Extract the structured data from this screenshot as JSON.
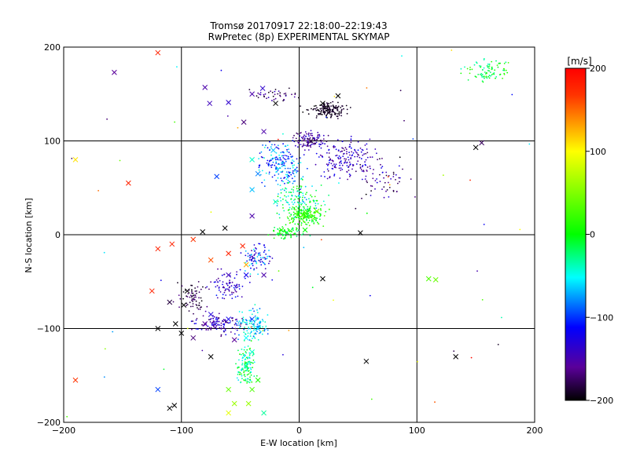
{
  "chart_data": {
    "type": "scatter",
    "title": "Tromsø 20170917 22:18:00–22:19:43",
    "subtitle": "RwPretec (8p) EXPERIMENTAL SKYMAP",
    "xlabel": "E-W location [km]",
    "ylabel": "N-S location [km]",
    "xlim": [
      -200,
      200
    ],
    "ylim": [
      -200,
      200
    ],
    "xticks": [
      -200,
      -100,
      0,
      100,
      200
    ],
    "yticks": [
      -200,
      -100,
      0,
      100,
      200
    ],
    "xtick_labels": [
      "−200",
      "−100",
      "0",
      "100",
      "200"
    ],
    "ytick_labels": [
      "−200",
      "−100",
      "0",
      "100",
      "200"
    ],
    "grid": true,
    "colorbar": {
      "label": "[m/s]",
      "range": [
        -200,
        200
      ],
      "ticks": [
        200,
        100,
        0,
        -100,
        -200
      ],
      "tick_labels": [
        "200",
        "100",
        "0",
        "−100",
        "−200"
      ],
      "colormap": "rainbow"
    },
    "points_x": [
      {
        "x": -157,
        "y": 173,
        "v": -150
      },
      {
        "x": -120,
        "y": 194,
        "v": 180
      },
      {
        "x": -80,
        "y": 157,
        "v": -140
      },
      {
        "x": -76,
        "y": 140,
        "v": -130
      },
      {
        "x": -60,
        "y": 141,
        "v": -120
      },
      {
        "x": -47,
        "y": 120,
        "v": -160
      },
      {
        "x": -40,
        "y": 150,
        "v": -140
      },
      {
        "x": -31,
        "y": 156,
        "v": -120
      },
      {
        "x": -20,
        "y": 140,
        "v": -200
      },
      {
        "x": 20,
        "y": 140,
        "v": -200
      },
      {
        "x": 25,
        "y": 130,
        "v": -190
      },
      {
        "x": 33,
        "y": 148,
        "v": -200
      },
      {
        "x": 10,
        "y": 100,
        "v": -180
      },
      {
        "x": -30,
        "y": 110,
        "v": -140
      },
      {
        "x": -40,
        "y": 80,
        "v": -40
      },
      {
        "x": -35,
        "y": 65,
        "v": -70
      },
      {
        "x": -22,
        "y": 90,
        "v": -60
      },
      {
        "x": -40,
        "y": 48,
        "v": -60
      },
      {
        "x": -20,
        "y": 35,
        "v": -40
      },
      {
        "x": -40,
        "y": 20,
        "v": -140
      },
      {
        "x": 5,
        "y": 20,
        "v": 20
      },
      {
        "x": 15,
        "y": 25,
        "v": 40
      },
      {
        "x": -15,
        "y": 5,
        "v": 10
      },
      {
        "x": 5,
        "y": 5,
        "v": 0
      },
      {
        "x": 52,
        "y": 2,
        "v": -200
      },
      {
        "x": -190,
        "y": 80,
        "v": 110
      },
      {
        "x": -145,
        "y": 55,
        "v": 180
      },
      {
        "x": -120,
        "y": -15,
        "v": 180
      },
      {
        "x": -108,
        "y": -10,
        "v": 180
      },
      {
        "x": -90,
        "y": -5,
        "v": 170
      },
      {
        "x": -82,
        "y": 3,
        "v": -200
      },
      {
        "x": -63,
        "y": 7,
        "v": -200
      },
      {
        "x": -75,
        "y": -27,
        "v": 160
      },
      {
        "x": -60,
        "y": -20,
        "v": 180
      },
      {
        "x": -48,
        "y": -12,
        "v": 180
      },
      {
        "x": -60,
        "y": -43,
        "v": -130
      },
      {
        "x": -45,
        "y": -43,
        "v": -100
      },
      {
        "x": -30,
        "y": -43,
        "v": -140
      },
      {
        "x": -45,
        "y": -32,
        "v": 130
      },
      {
        "x": -95,
        "y": -60,
        "v": -200
      },
      {
        "x": -98,
        "y": -75,
        "v": -200
      },
      {
        "x": -110,
        "y": -72,
        "v": -180
      },
      {
        "x": -125,
        "y": -60,
        "v": 180
      },
      {
        "x": -105,
        "y": -95,
        "v": -200
      },
      {
        "x": -120,
        "y": -100,
        "v": -200
      },
      {
        "x": -100,
        "y": -105,
        "v": -200
      },
      {
        "x": -75,
        "y": -85,
        "v": -110
      },
      {
        "x": -60,
        "y": -90,
        "v": -100
      },
      {
        "x": -80,
        "y": -95,
        "v": -150
      },
      {
        "x": -90,
        "y": -110,
        "v": -160
      },
      {
        "x": -55,
        "y": -112,
        "v": -150
      },
      {
        "x": -40,
        "y": -90,
        "v": -80
      },
      {
        "x": -35,
        "y": -100,
        "v": -60
      },
      {
        "x": -45,
        "y": -110,
        "v": -50
      },
      {
        "x": -40,
        "y": -125,
        "v": -40
      },
      {
        "x": -45,
        "y": -140,
        "v": -20
      },
      {
        "x": -35,
        "y": -155,
        "v": 10
      },
      {
        "x": -40,
        "y": -165,
        "v": 30
      },
      {
        "x": -60,
        "y": -165,
        "v": 40
      },
      {
        "x": -55,
        "y": -180,
        "v": 60
      },
      {
        "x": -60,
        "y": -190,
        "v": 90
      },
      {
        "x": -43,
        "y": -180,
        "v": 60
      },
      {
        "x": -30,
        "y": -190,
        "v": -30
      },
      {
        "x": -75,
        "y": -130,
        "v": -200
      },
      {
        "x": -110,
        "y": -185,
        "v": -200
      },
      {
        "x": -106,
        "y": -182,
        "v": -200
      },
      {
        "x": -120,
        "y": -165,
        "v": -80
      },
      {
        "x": -190,
        "y": -155,
        "v": 170
      },
      {
        "x": 20,
        "y": -47,
        "v": -200
      },
      {
        "x": 57,
        "y": -135,
        "v": -200
      },
      {
        "x": 133,
        "y": -130,
        "v": -200
      },
      {
        "x": 110,
        "y": -47,
        "v": 30
      },
      {
        "x": 116,
        "y": -48,
        "v": 40
      },
      {
        "x": 150,
        "y": 93,
        "v": -200
      },
      {
        "x": 155,
        "y": 98,
        "v": -170
      },
      {
        "x": -70,
        "y": 62,
        "v": -80
      }
    ],
    "points_dot_note": "dense cloud of small dot markers along the structure from (-110,-60) to (30,150) plus scattered points; colour = velocity in m/s"
  }
}
